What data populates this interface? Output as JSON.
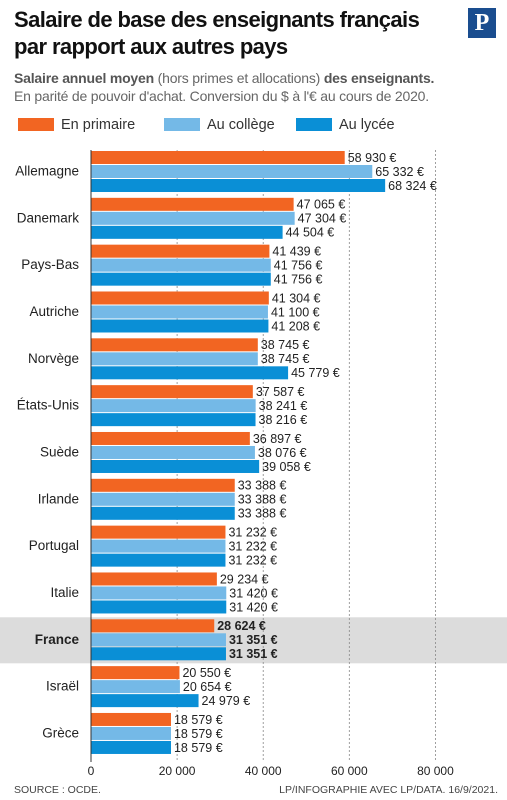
{
  "header": {
    "logo": "P",
    "subtitle": [
      "Salaire annuel moyen",
      "(hors primes et allocations)",
      "des enseignants."
    ],
    "note": "En parité de pouvoir d'achat. Conversion du $ à l'€ au cours de 2020."
  },
  "footer": {
    "source": "SOURCE : OCDE.",
    "credit": "LP/INFOGRAPHIE AVEC LP/DATA. 16/9/2021."
  },
  "chart_data": {
    "type": "bar",
    "orientation": "horizontal",
    "title": "Salaire de base des enseignants français par rapport aux autres pays",
    "categories": [
      "Allemagne",
      "Danemark",
      "Pays-Bas",
      "Autriche",
      "Norvège",
      "États-Unis",
      "Suède",
      "Irlande",
      "Portugal",
      "Italie",
      "France",
      "Israël",
      "Grèce"
    ],
    "highlight": "France",
    "series": [
      {
        "name": "En primaire",
        "color": "#f26522",
        "values": [
          58930,
          47065,
          41439,
          41304,
          38745,
          37587,
          36897,
          33388,
          31232,
          29234,
          28624,
          20550,
          18579
        ],
        "value_labels": [
          "58 930 €",
          "47 065 €",
          "41 439 €",
          "41 304 €",
          "38 745 €",
          "37 587 €",
          "36 897 €",
          "33 388 €",
          "31 232 €",
          "29 234 €",
          "28 624 €",
          "20 550 €",
          "18 579 €"
        ]
      },
      {
        "name": "Au collège",
        "color": "#74b9e7",
        "values": [
          65332,
          47304,
          41756,
          41100,
          38745,
          38241,
          38076,
          33388,
          31232,
          31420,
          31351,
          20654,
          18579
        ],
        "value_labels": [
          "65 332 €",
          "47 304 €",
          "41 756 €",
          "41 100 €",
          "38 745 €",
          "38 241 €",
          "38 076 €",
          "33 388 €",
          "31 232 €",
          "31 420 €",
          "31 351 €",
          "20 654 €",
          "18 579 €"
        ]
      },
      {
        "name": "Au lycée",
        "color": "#0a8fd6",
        "values": [
          68324,
          44504,
          41756,
          41208,
          45779,
          38216,
          39058,
          33388,
          31232,
          31420,
          31351,
          24979,
          18579
        ],
        "value_labels": [
          "68 324 €",
          "44 504 €",
          "41 756 €",
          "41 208 €",
          "45 779 €",
          "38 216 €",
          "39 058 €",
          "33 388 €",
          "31 232 €",
          "31 420 €",
          "31 351 €",
          "24 979 €",
          "18 579 €"
        ]
      }
    ],
    "xlim": [
      0,
      95000
    ],
    "xticks": [
      0,
      {
        "value": 20000,
        "label": "20 000"
      },
      {
        "value": 40000,
        "label": "40 000"
      },
      {
        "value": 60000,
        "label": "60 000"
      },
      {
        "value": 80000,
        "label": "80 000"
      }
    ],
    "grid": true
  }
}
